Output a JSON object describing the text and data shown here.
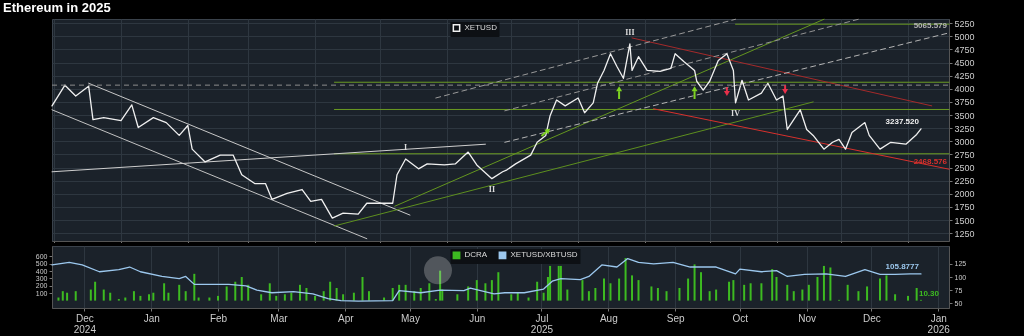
{
  "chart_data": [
    {
      "type": "line",
      "title": "Ethereum in 2025",
      "legend": "top",
      "grid": true,
      "tick_labels": "y",
      "xlim": [
        "2024-11-30",
        "2026-01-20"
      ],
      "xticks": [
        {
          "value": "2024-12-01",
          "label": null
        },
        {
          "value": "2025-01-01",
          "label": null
        },
        {
          "value": "2025-02-01",
          "label": null
        },
        {
          "value": "2025-03-01",
          "label": null
        },
        {
          "value": "2025-04-01",
          "label": null
        },
        {
          "value": "2025-05-01",
          "label": null
        },
        {
          "value": "2025-06-01",
          "label": null
        },
        {
          "value": "2025-07-01",
          "label": null
        },
        {
          "value": "2025-08-01",
          "label": null
        },
        {
          "value": "2025-09-01",
          "label": null
        },
        {
          "value": "2025-10-01",
          "label": null
        },
        {
          "value": "2025-11-01",
          "label": null
        },
        {
          "value": "2025-12-01",
          "label": null
        },
        {
          "value": "2026-01-01",
          "label": null
        }
      ],
      "ylim": [
        1100,
        5330
      ],
      "yticks": [
        1250,
        1500,
        1750,
        2000,
        2250,
        2500,
        2750,
        3000,
        3250,
        3500,
        3750,
        4000,
        4250,
        4500,
        4750,
        5000,
        5250
      ],
      "annotations": [
        {
          "text": "I",
          "x": "2025-05-13",
          "y": 2662
        },
        {
          "text": "II",
          "x": "2025-06-22",
          "y": 2288
        },
        {
          "text": "III",
          "x": "2025-08-25",
          "y": 4856
        },
        {
          "text": "IV",
          "x": "2025-10-13",
          "y": 3731
        }
      ],
      "ref_lines": [
        {
          "axis": "y",
          "value": 4070,
          "color": "#8c8c8c",
          "line_style": "dashed"
        }
      ],
      "series": [
        {
          "color": "#6b9b22",
          "x": [
            "2025-04-10",
            "2026-01-20"
          ],
          "values": [
            4125,
            4125
          ]
        },
        {
          "color": "#6a9a21",
          "x": [
            "2025-04-10",
            "2026-01-20"
          ],
          "values": [
            3606,
            3606
          ]
        },
        {
          "color": "#6c9c23",
          "x": [
            "2025-04-10",
            "2026-01-20"
          ],
          "values": [
            2762,
            2762
          ]
        },
        {
          "color": "#699920",
          "x": [
            "2025-10-13",
            "2026-01-20"
          ],
          "values": [
            5231,
            5231
          ]
        },
        {
          "color": "#c8c8c8",
          "x": [
            "2024-12-17",
            "2025-05-15"
          ],
          "values": [
            4106,
            1594
          ]
        },
        {
          "color": "#c2c2c2",
          "x": [
            "2024-11-30",
            "2025-04-25"
          ],
          "values": [
            3600,
            1144
          ]
        },
        {
          "color": "#cecece",
          "x": [
            "2024-11-30",
            "2025-06-19"
          ],
          "values": [
            2419,
            2944
          ]
        },
        {
          "color": "#5d8f1e",
          "x": [
            "2025-04-10",
            "2025-11-18"
          ],
          "values": [
            1387,
            3750
          ]
        },
        {
          "color": "#64961f",
          "x": [
            "2025-05-08",
            "2025-11-23"
          ],
          "values": [
            1763,
            5325
          ]
        },
        {
          "color": "#a52a2a",
          "x": [
            "2025-08-26",
            "2026-01-12"
          ],
          "values": [
            4969,
            3675
          ]
        },
        {
          "color": "#d8302c",
          "x": [
            "2025-09-05",
            "2026-01-20"
          ],
          "values": [
            3619,
            2468.576
          ],
          "value_labels": [
            null,
            "2468.576"
          ]
        },
        {
          "color": "#9a9a9a",
          "line_style": "dashed",
          "x": [
            "2025-05-27",
            "2025-10-13"
          ],
          "values": [
            3825,
            5325
          ]
        },
        {
          "color": "#939393",
          "line_style": "dashed",
          "x": [
            "2025-06-28",
            "2025-12-09"
          ],
          "values": [
            3581,
            5325
          ]
        },
        {
          "color": "#b4b4b4",
          "line_style": "dashed",
          "x": [
            "2025-06-28",
            "2026-01-20"
          ],
          "values": [
            2981,
            5065.579
          ],
          "value_labels": [
            null,
            "5065.579"
          ]
        },
        {
          "name": "XETUSD",
          "color": "#f0f0f0",
          "x": [
            "2024-11-30",
            "2024-12-06",
            "2024-12-11",
            "2024-12-17",
            "2024-12-19",
            "2024-12-24",
            "2025-01-01",
            "2025-01-06",
            "2025-01-09",
            "2025-01-16",
            "2025-01-22",
            "2025-01-28",
            "2025-02-01",
            "2025-02-03",
            "2025-02-09",
            "2025-02-16",
            "2025-02-22",
            "2025-02-26",
            "2025-03-04",
            "2025-03-09",
            "2025-03-12",
            "2025-03-19",
            "2025-03-26",
            "2025-03-30",
            "2025-04-04",
            "2025-04-09",
            "2025-04-14",
            "2025-04-21",
            "2025-04-25",
            "2025-05-02",
            "2025-05-07",
            "2025-05-09",
            "2025-05-13",
            "2025-05-19",
            "2025-05-23",
            "2025-05-31",
            "2025-06-05",
            "2025-06-11",
            "2025-06-15",
            "2025-06-22",
            "2025-06-27",
            "2025-06-29",
            "2025-07-03",
            "2025-07-10",
            "2025-07-13",
            "2025-07-17",
            "2025-07-19",
            "2025-07-22",
            "2025-07-26",
            "2025-08-01",
            "2025-08-04",
            "2025-08-08",
            "2025-08-10",
            "2025-08-13",
            "2025-08-16",
            "2025-08-19",
            "2025-08-22",
            "2025-08-25",
            "2025-08-26",
            "2025-08-29",
            "2025-09-02",
            "2025-09-08",
            "2025-09-13",
            "2025-09-15",
            "2025-09-19",
            "2025-09-24",
            "2025-09-25",
            "2025-09-28",
            "2025-10-01",
            "2025-10-05",
            "2025-10-09",
            "2025-10-12",
            "2025-10-13",
            "2025-10-16",
            "2025-10-19",
            "2025-10-25",
            "2025-10-28",
            "2025-11-01",
            "2025-11-04",
            "2025-11-06",
            "2025-11-09",
            "2025-11-12",
            "2025-11-15",
            "2025-11-18",
            "2025-11-23",
            "2025-11-27",
            "2025-11-30",
            "2025-12-03",
            "2025-12-06",
            "2025-12-12",
            "2025-12-14",
            "2025-12-19",
            "2025-12-24",
            "2025-12-31",
            "2026-01-05",
            "2026-01-07"
          ],
          "values": [
            3675,
            4069,
            3862,
            4050,
            3413,
            3450,
            3394,
            3694,
            3262,
            3450,
            3356,
            3112,
            3300,
            2850,
            2606,
            2737,
            2737,
            2362,
            2194,
            2194,
            1894,
            2006,
            2081,
            1856,
            1894,
            1537,
            1631,
            1612,
            1819,
            1819,
            1819,
            2362,
            2662,
            2475,
            2569,
            2550,
            2569,
            2794,
            2550,
            2288,
            2419,
            2456,
            2569,
            2737,
            2981,
            3112,
            3487,
            3787,
            3675,
            3825,
            3544,
            3731,
            4106,
            4350,
            4669,
            4425,
            4200,
            4856,
            4350,
            4612,
            4350,
            4331,
            4387,
            4669,
            4519,
            4350,
            4144,
            3975,
            4144,
            4538,
            4669,
            4350,
            3731,
            4162,
            3787,
            3919,
            4106,
            3787,
            3862,
            3225,
            3412,
            3600,
            3225,
            3112,
            2850,
            2981,
            3037,
            2850,
            3169,
            3356,
            3112,
            2850,
            2981,
            2944,
            3131,
            3237.52
          ],
          "value_labels": [
            null,
            null,
            null,
            null,
            null,
            null,
            null,
            null,
            null,
            null,
            null,
            null,
            null,
            null,
            null,
            null,
            null,
            null,
            null,
            null,
            null,
            null,
            null,
            null,
            null,
            null,
            null,
            null,
            null,
            null,
            null,
            null,
            null,
            null,
            null,
            null,
            null,
            null,
            null,
            null,
            null,
            null,
            null,
            null,
            null,
            null,
            null,
            null,
            null,
            null,
            null,
            null,
            null,
            null,
            null,
            null,
            null,
            null,
            null,
            null,
            null,
            null,
            null,
            null,
            null,
            null,
            null,
            null,
            null,
            null,
            null,
            null,
            null,
            null,
            null,
            null,
            null,
            null,
            null,
            null,
            null,
            null,
            null,
            null,
            null,
            null,
            null,
            null,
            null,
            null,
            null,
            null,
            null,
            null,
            null,
            "3237.520"
          ]
        }
      ]
    },
    {
      "type": "bar",
      "legend": "top",
      "grid": "x",
      "xlim": [
        "2024-11-30",
        "2026-01-20"
      ],
      "xticks": [
        {
          "value": "2024-12-15",
          "label": "Dec\n2024"
        },
        {
          "value": "2025-01-15",
          "label": "Jan"
        },
        {
          "value": "2025-02-15",
          "label": "Feb"
        },
        {
          "value": "2025-03-15",
          "label": "Mar"
        },
        {
          "value": "2025-04-15",
          "label": "Apr"
        },
        {
          "value": "2025-05-15",
          "label": "May"
        },
        {
          "value": "2025-06-15",
          "label": "Jun"
        },
        {
          "value": "2025-07-15",
          "label": "Jul\n2025"
        },
        {
          "value": "2025-08-15",
          "label": "Aug"
        },
        {
          "value": "2025-09-15",
          "label": "Sep"
        },
        {
          "value": "2025-10-15",
          "label": "Oct"
        },
        {
          "value": "2025-11-15",
          "label": "Nov"
        },
        {
          "value": "2025-12-15",
          "label": "Dec"
        },
        {
          "value": "2026-01-15",
          "label": "Jan\n2026"
        }
      ],
      "ylim": [
        -100,
        740
      ],
      "yticks": [
        100,
        200,
        300,
        400,
        500,
        600
      ],
      "y2lim": [
        41,
        159
      ],
      "y2ticks": [
        50,
        75,
        100,
        125
      ],
      "series": [
        {
          "name": "DCRA",
          "color": "#3dbb21",
          "x": [
            "2024-12-03",
            "2024-12-05",
            "2024-12-07",
            "2024-12-11",
            "2024-12-18",
            "2024-12-20",
            "2024-12-24",
            "2024-12-27",
            "2024-12-31",
            "2025-01-03",
            "2025-01-07",
            "2025-01-10",
            "2025-01-14",
            "2025-01-16",
            "2025-01-21",
            "2025-01-23",
            "2025-01-28",
            "2025-01-31",
            "2025-02-04",
            "2025-02-06",
            "2025-02-11",
            "2025-02-15",
            "2025-02-19",
            "2025-02-23",
            "2025-02-26",
            "2025-03-01",
            "2025-03-07",
            "2025-03-11",
            "2025-03-14",
            "2025-03-18",
            "2025-03-21",
            "2025-03-25",
            "2025-03-28",
            "2025-04-01",
            "2025-04-05",
            "2025-04-08",
            "2025-04-11",
            "2025-04-14",
            "2025-04-19",
            "2025-04-23",
            "2025-04-26",
            "2025-05-03",
            "2025-05-07",
            "2025-05-10",
            "2025-05-13",
            "2025-05-17",
            "2025-05-20",
            "2025-05-24",
            "2025-05-27",
            "2025-05-29",
            "2025-05-30",
            "2025-06-06",
            "2025-06-11",
            "2025-06-15",
            "2025-06-19",
            "2025-06-22",
            "2025-06-25",
            "2025-07-01",
            "2025-07-04",
            "2025-07-09",
            "2025-07-13",
            "2025-07-16",
            "2025-07-18",
            "2025-07-19",
            "2025-07-23",
            "2025-07-24",
            "2025-07-27",
            "2025-08-03",
            "2025-08-06",
            "2025-08-09",
            "2025-08-13",
            "2025-08-16",
            "2025-08-20",
            "2025-08-23",
            "2025-08-26",
            "2025-08-29",
            "2025-09-04",
            "2025-09-07",
            "2025-09-11",
            "2025-09-17",
            "2025-09-21",
            "2025-09-24",
            "2025-09-27",
            "2025-10-01",
            "2025-10-04",
            "2025-10-10",
            "2025-10-12",
            "2025-10-17",
            "2025-10-20",
            "2025-10-25",
            "2025-10-30",
            "2025-11-01",
            "2025-11-06",
            "2025-11-09",
            "2025-11-13",
            "2025-11-16",
            "2025-11-20",
            "2025-11-23",
            "2025-11-26",
            "2025-11-30",
            "2025-12-04",
            "2025-12-09",
            "2025-12-13",
            "2025-12-19",
            "2025-12-22",
            "2025-12-26",
            "2026-01-01",
            "2026-01-05",
            "2026-01-07"
          ],
          "values": [
            42,
            128,
            107,
            128,
            150,
            256,
            150,
            107,
            21,
            42,
            128,
            64,
            86,
            107,
            235,
            107,
            214,
            128,
            363,
            42,
            42,
            64,
            192,
            256,
            320,
            214,
            86,
            235,
            64,
            86,
            107,
            214,
            171,
            64,
            128,
            256,
            171,
            86,
            107,
            320,
            128,
            42,
            171,
            214,
            214,
            128,
            171,
            235,
            21,
            406,
            150,
            86,
            192,
            278,
            235,
            278,
            385,
            86,
            107,
            42,
            256,
            107,
            320,
            470,
            470,
            470,
            150,
            278,
            128,
            171,
            299,
            235,
            299,
            577,
            342,
            278,
            192,
            171,
            128,
            171,
            299,
            491,
            385,
            128,
            150,
            256,
            278,
            214,
            235,
            235,
            427,
            320,
            214,
            128,
            150,
            214,
            320,
            470,
            449,
            10,
            214,
            128,
            192,
            299,
            342,
            86,
            64,
            171,
            10.3
          ],
          "value_labels": [
            null,
            null,
            null,
            null,
            null,
            null,
            null,
            null,
            null,
            null,
            null,
            null,
            null,
            null,
            null,
            null,
            null,
            null,
            null,
            null,
            null,
            null,
            null,
            null,
            null,
            null,
            null,
            null,
            null,
            null,
            null,
            null,
            null,
            null,
            null,
            null,
            null,
            null,
            null,
            null,
            null,
            null,
            null,
            null,
            null,
            null,
            null,
            null,
            null,
            null,
            null,
            null,
            null,
            null,
            null,
            null,
            null,
            null,
            null,
            null,
            null,
            null,
            null,
            null,
            null,
            null,
            null,
            null,
            null,
            null,
            null,
            null,
            null,
            null,
            null,
            null,
            null,
            null,
            null,
            null,
            null,
            null,
            null,
            null,
            null,
            null,
            null,
            null,
            null,
            null,
            null,
            null,
            null,
            null,
            null,
            null,
            null,
            null,
            null,
            null,
            null,
            null,
            null,
            null,
            null,
            null,
            null,
            null,
            "10.30"
          ]
        },
        {
          "name": "XETUSD/XBTUSD",
          "type": "line",
          "axis": "y2",
          "color": "#9cc8ee",
          "x": [
            "2024-11-30",
            "2024-12-08",
            "2024-12-14",
            "2024-12-22",
            "2024-12-31",
            "2025-01-05",
            "2025-01-10",
            "2025-01-20",
            "2025-01-28",
            "2025-01-31",
            "2025-02-04",
            "2025-02-12",
            "2025-02-20",
            "2025-02-28",
            "2025-03-05",
            "2025-03-12",
            "2025-03-22",
            "2025-03-31",
            "2025-04-07",
            "2025-04-13",
            "2025-04-21",
            "2025-05-07",
            "2025-05-10",
            "2025-05-20",
            "2025-05-29",
            "2025-06-09",
            "2025-06-12",
            "2025-06-23",
            "2025-06-28",
            "2025-07-07",
            "2025-07-16",
            "2025-07-20",
            "2025-07-24",
            "2025-08-02",
            "2025-08-06",
            "2025-08-12",
            "2025-08-19",
            "2025-08-24",
            "2025-08-29",
            "2025-09-05",
            "2025-09-14",
            "2025-09-22",
            "2025-10-04",
            "2025-10-13",
            "2025-10-15",
            "2025-10-25",
            "2025-11-01",
            "2025-11-06",
            "2025-11-14",
            "2025-11-24",
            "2025-12-03",
            "2025-12-12",
            "2025-12-19",
            "2025-12-26",
            "2026-01-02",
            "2026-01-07"
          ],
          "values": [
            123,
            128,
            123,
            110,
            114,
            119,
            110,
            101,
            97,
            101,
            86,
            86,
            86,
            83,
            75,
            70,
            72,
            68,
            59,
            55,
            54,
            55,
            74,
            70,
            75,
            74,
            79,
            68,
            70,
            70,
            77,
            92,
            97,
            95,
            101,
            123,
            119,
            135,
            128,
            125,
            128,
            119,
            119,
            106,
            115,
            110,
            112,
            101,
            105,
            106,
            101,
            114,
            105,
            105,
            106,
            105.8777
          ],
          "value_labels": [
            null,
            null,
            null,
            null,
            null,
            null,
            null,
            null,
            null,
            null,
            null,
            null,
            null,
            null,
            null,
            null,
            null,
            null,
            null,
            null,
            null,
            null,
            null,
            null,
            null,
            null,
            null,
            null,
            null,
            null,
            null,
            null,
            null,
            null,
            null,
            null,
            null,
            null,
            null,
            null,
            null,
            null,
            null,
            null,
            null,
            null,
            null,
            null,
            null,
            null,
            null,
            null,
            null,
            null,
            null,
            "105.8777"
          ]
        }
      ]
    }
  ]
}
